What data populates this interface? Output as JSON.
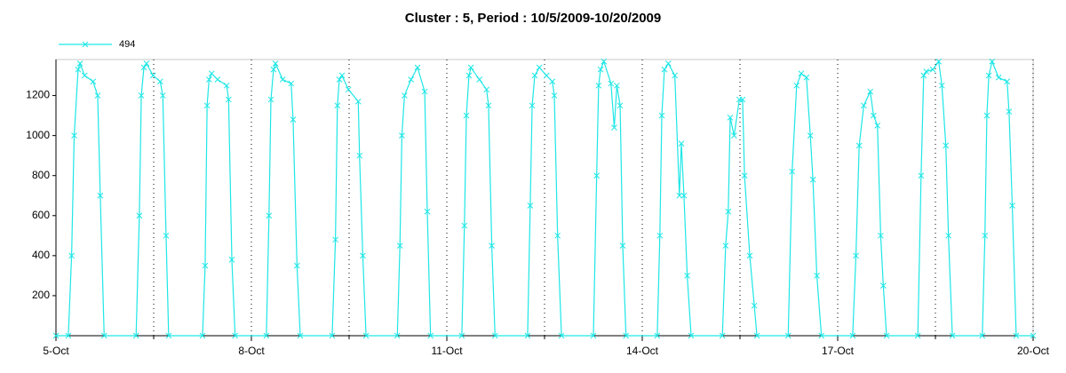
{
  "chart_data": {
    "type": "line",
    "title": "Cluster : 5, Period : 10/5/2009-10/20/2009",
    "x": [
      0,
      0.19,
      0.24,
      0.28,
      0.34,
      0.37,
      0.44,
      0.57,
      0.64,
      0.68,
      0.74,
      1.23,
      1.28,
      1.31,
      1.35,
      1.39,
      1.49,
      1.6,
      1.64,
      1.69,
      1.73,
      2.25,
      2.29,
      2.32,
      2.35,
      2.39,
      2.48,
      2.62,
      2.65,
      2.7,
      2.75,
      3.23,
      3.27,
      3.3,
      3.34,
      3.37,
      3.48,
      3.61,
      3.64,
      3.7,
      3.75,
      4.24,
      4.29,
      4.32,
      4.35,
      4.39,
      4.49,
      4.64,
      4.66,
      4.71,
      4.76,
      5.24,
      5.28,
      5.31,
      5.35,
      5.45,
      5.55,
      5.66,
      5.7,
      5.75,
      6.23,
      6.27,
      6.3,
      6.34,
      6.37,
      6.5,
      6.61,
      6.64,
      6.69,
      6.74,
      7.24,
      7.28,
      7.31,
      7.35,
      7.42,
      7.53,
      7.62,
      7.65,
      7.7,
      7.76,
      8.25,
      8.3,
      8.33,
      8.36,
      8.41,
      8.52,
      8.57,
      8.61,
      8.66,
      8.7,
      8.75,
      9.23,
      9.27,
      9.3,
      9.34,
      9.4,
      9.5,
      9.57,
      9.6,
      9.64,
      9.69,
      9.75,
      10.23,
      10.28,
      10.32,
      10.35,
      10.41,
      10.49,
      10.54,
      10.57,
      10.65,
      10.72,
      10.76,
      11.24,
      11.3,
      11.37,
      11.44,
      11.52,
      11.58,
      11.62,
      11.68,
      11.75,
      12.23,
      12.28,
      12.33,
      12.4,
      12.5,
      12.55,
      12.61,
      12.66,
      12.7,
      12.75,
      13.23,
      13.28,
      13.32,
      13.36,
      13.46,
      13.55,
      13.6,
      13.66,
      13.7,
      13.76,
      14.22,
      14.26,
      14.29,
      14.32,
      14.37,
      14.47,
      14.6,
      14.63,
      14.68,
      14.74,
      15
    ],
    "series": [
      {
        "name": "494",
        "color": "#1ee6e6",
        "values": [
          0,
          0,
          400,
          1000,
          1330,
          1360,
          1300,
          1270,
          1200,
          700,
          0,
          0,
          600,
          1200,
          1340,
          1360,
          1300,
          1270,
          1200,
          500,
          0,
          0,
          350,
          1150,
          1280,
          1310,
          1280,
          1250,
          1180,
          380,
          0,
          0,
          600,
          1180,
          1330,
          1360,
          1280,
          1260,
          1080,
          350,
          0,
          0,
          480,
          1150,
          1280,
          1300,
          1230,
          1170,
          900,
          400,
          0,
          0,
          450,
          1000,
          1200,
          1280,
          1340,
          1220,
          620,
          0,
          0,
          550,
          1100,
          1300,
          1340,
          1280,
          1230,
          1150,
          450,
          0,
          0,
          650,
          1150,
          1300,
          1340,
          1300,
          1270,
          1200,
          500,
          0,
          0,
          800,
          1250,
          1330,
          1370,
          1260,
          1040,
          1250,
          1150,
          450,
          0,
          0,
          500,
          1100,
          1330,
          1360,
          1300,
          700,
          960,
          700,
          300,
          0,
          0,
          450,
          620,
          1090,
          1000,
          1180,
          1180,
          800,
          400,
          150,
          0,
          0,
          820,
          1250,
          1310,
          1290,
          1000,
          780,
          300,
          0,
          0,
          400,
          950,
          1150,
          1220,
          1100,
          1050,
          500,
          250,
          0,
          0,
          800,
          1300,
          1320,
          1330,
          1370,
          1250,
          950,
          500,
          0,
          0,
          500,
          1100,
          1300,
          1370,
          1290,
          1270,
          1120,
          650,
          0,
          0
        ]
      }
    ],
    "xlim": [
      0,
      15
    ],
    "xticks": [
      {
        "value": 0,
        "label": "5-Oct"
      },
      {
        "value": 3,
        "label": "8-Oct"
      },
      {
        "value": 6,
        "label": "11-Oct"
      },
      {
        "value": 9,
        "label": "14-Oct"
      },
      {
        "value": 12,
        "label": "17-Oct"
      },
      {
        "value": 15,
        "label": "20-Oct"
      }
    ],
    "xminorticks": [
      1.5,
      4.5,
      7.5,
      10.5,
      13.5
    ],
    "ylim": [
      0,
      1380
    ],
    "yticks": [
      200,
      400,
      600,
      800,
      1000,
      1200
    ],
    "grid": true,
    "markers": true
  }
}
